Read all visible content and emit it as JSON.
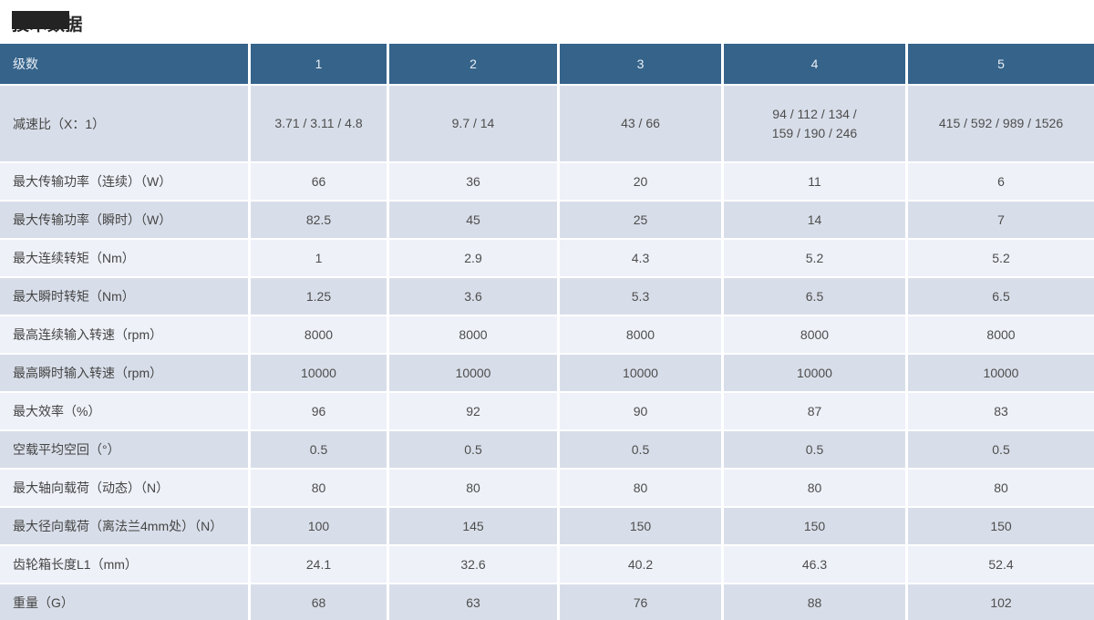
{
  "header": {
    "title": "技术数据"
  },
  "table": {
    "columns": [
      "级数",
      "1",
      "2",
      "3",
      "4",
      "5"
    ],
    "rows": [
      {
        "label": "减速比（X：1）",
        "values": [
          "3.71 / 3.11 / 4.8",
          "9.7 / 14",
          "43 / 66",
          "94 / 112 / 134 /\n159 / 190 / 246",
          "415 / 592 / 989 / 1526"
        ]
      },
      {
        "label": "最大传输功率（连续）（W）",
        "values": [
          "66",
          "36",
          "20",
          "11",
          "6"
        ]
      },
      {
        "label": "最大传输功率（瞬时）（W）",
        "values": [
          "82.5",
          "45",
          "25",
          "14",
          "7"
        ]
      },
      {
        "label": "最大连续转矩（Nm）",
        "values": [
          "1",
          "2.9",
          "4.3",
          "5.2",
          "5.2"
        ]
      },
      {
        "label": "最大瞬时转矩（Nm）",
        "values": [
          "1.25",
          "3.6",
          "5.3",
          "6.5",
          "6.5"
        ]
      },
      {
        "label": "最高连续输入转速（rpm）",
        "values": [
          "8000",
          "8000",
          "8000",
          "8000",
          "8000"
        ]
      },
      {
        "label": "最高瞬时输入转速（rpm）",
        "values": [
          "10000",
          "10000",
          "10000",
          "10000",
          "10000"
        ]
      },
      {
        "label": "最大效率（%）",
        "values": [
          "96",
          "92",
          "90",
          "87",
          "83"
        ]
      },
      {
        "label": "空载平均空回（°）",
        "values": [
          "0.5",
          "0.5",
          "0.5",
          "0.5",
          "0.5"
        ]
      },
      {
        "label": "最大轴向载荷（动态）（N）",
        "values": [
          "80",
          "80",
          "80",
          "80",
          "80"
        ]
      },
      {
        "label": "最大径向载荷（离法兰4mm处）（N）",
        "values": [
          "100",
          "145",
          "150",
          "150",
          "150"
        ]
      },
      {
        "label": "齿轮箱长度L1（mm）",
        "values": [
          "24.1",
          "32.6",
          "40.2",
          "46.3",
          "52.4"
        ]
      },
      {
        "label": "重量（G）",
        "values": [
          "68",
          "63",
          "76",
          "88",
          "102"
        ]
      }
    ],
    "colors": {
      "header_bg": "#35638a",
      "row_dark": "#d8dee9",
      "row_light": "#eef1f8"
    }
  }
}
